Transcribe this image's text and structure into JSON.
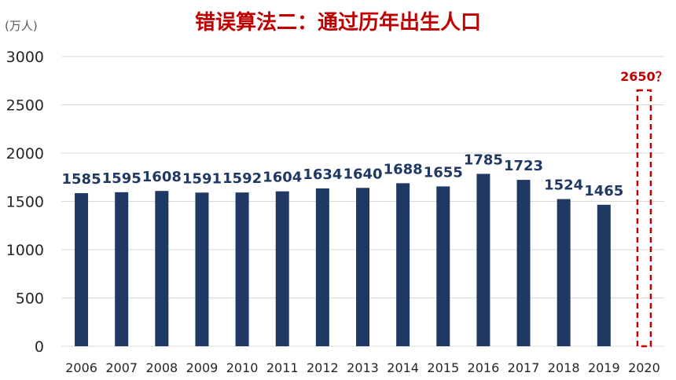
{
  "chart_data": {
    "type": "bar",
    "title": "错误算法二：通过历年出生人口",
    "ylabel": "(万人)",
    "xlabel": "",
    "ylim": [
      0,
      3000
    ],
    "yticks": [
      0,
      500,
      1000,
      1500,
      2000,
      2500,
      3000
    ],
    "grid": true,
    "legend": "none",
    "categories": [
      "2006",
      "2007",
      "2008",
      "2009",
      "2010",
      "2011",
      "2012",
      "2013",
      "2014",
      "2015",
      "2016",
      "2017",
      "2018",
      "2019",
      "2020"
    ],
    "values": [
      1585,
      1595,
      1608,
      1591,
      1592,
      1604,
      1634,
      1640,
      1688,
      1655,
      1785,
      1723,
      1524,
      1465,
      2650
    ],
    "data_labels": [
      "1585",
      "1595",
      "1608",
      "1591",
      "1592",
      "1604",
      "1634",
      "1640",
      "1688",
      "1655",
      "1785",
      "1723",
      "1524",
      "1465",
      "2650？"
    ],
    "estimated": [
      false,
      false,
      false,
      false,
      false,
      false,
      false,
      false,
      false,
      false,
      false,
      false,
      false,
      false,
      true
    ],
    "colors": {
      "bar": "#1f3864",
      "estimate": "#c00000",
      "title": "#c00000",
      "grid": "#d9d9d9",
      "axis_text": "#262626"
    }
  }
}
